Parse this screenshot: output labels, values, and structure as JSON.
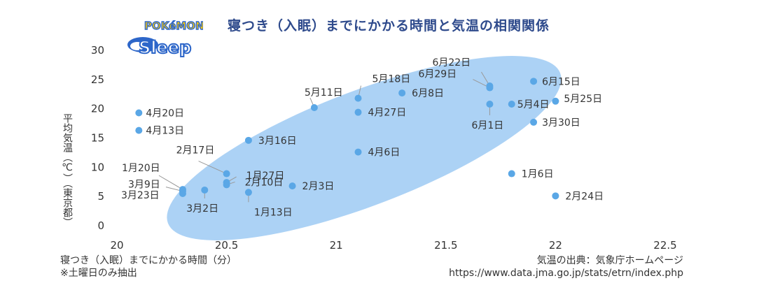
{
  "logo": {
    "line1": "POKéMON",
    "line2": "Sleep"
  },
  "title": "寝つき（入眠）までにかかる時間と気温の相関関係",
  "footnotes": {
    "xlabel": "寝つき（入眠）までにかかる時間（分）",
    "note": "※土曜日のみ抽出",
    "source_label": "気温の出典：気象庁ホームページ",
    "source_url": "https://www.data.jma.go.jp/stats/etrn/index.php"
  },
  "colors": {
    "point": "#5aa7e6",
    "ellipse": "#9dcaf3",
    "title": "#2e4a8c"
  },
  "chart_data": {
    "type": "scatter",
    "title": "寝つき（入眠）までにかかる時間と気温の相関関係",
    "xlabel": "寝つき（入眠）までにかかる時間（分）",
    "ylabel": "平均気温（℃）（東京都）",
    "xlim": [
      20,
      22.5
    ],
    "ylim": [
      0,
      30
    ],
    "xticks": [
      "20",
      "20.5",
      "21",
      "21.5",
      "22",
      "22.5"
    ],
    "yticks": [
      "0",
      "5",
      "10",
      "15",
      "20",
      "25",
      "30"
    ],
    "grid": false,
    "points": [
      {
        "label": "4月20日",
        "x": 20.1,
        "y": 19.3
      },
      {
        "label": "4月13日",
        "x": 20.1,
        "y": 16.3
      },
      {
        "label": "1月20日",
        "x": 20.3,
        "y": 6.2
      },
      {
        "label": "3月9日",
        "x": 20.3,
        "y": 5.9
      },
      {
        "label": "3月23日",
        "x": 20.3,
        "y": 5.5
      },
      {
        "label": "3月2日",
        "x": 20.4,
        "y": 6.1
      },
      {
        "label": "2月17日",
        "x": 20.5,
        "y": 8.9
      },
      {
        "label": "1月27日",
        "x": 20.5,
        "y": 7.4
      },
      {
        "label": "2月10日",
        "x": 20.5,
        "y": 7.0
      },
      {
        "label": "3月16日",
        "x": 20.6,
        "y": 14.6
      },
      {
        "label": "1月13日",
        "x": 20.6,
        "y": 5.7
      },
      {
        "label": "2月3日",
        "x": 20.8,
        "y": 6.8
      },
      {
        "label": "5月11日",
        "x": 20.9,
        "y": 20.2
      },
      {
        "label": "5月18日",
        "x": 21.1,
        "y": 21.8
      },
      {
        "label": "4月27日",
        "x": 21.1,
        "y": 19.4
      },
      {
        "label": "4月6日",
        "x": 21.1,
        "y": 12.6
      },
      {
        "label": "6月8日",
        "x": 21.3,
        "y": 22.7
      },
      {
        "label": "6月29日",
        "x": 21.7,
        "y": 23.6
      },
      {
        "label": "6月22日",
        "x": 21.7,
        "y": 23.9
      },
      {
        "label": "6月1日",
        "x": 21.7,
        "y": 20.8
      },
      {
        "label": "5月4日",
        "x": 21.8,
        "y": 20.8
      },
      {
        "label": "1月6日",
        "x": 21.8,
        "y": 8.9
      },
      {
        "label": "6月15日",
        "x": 21.9,
        "y": 24.7
      },
      {
        "label": "3月30日",
        "x": 21.9,
        "y": 17.7
      },
      {
        "label": "5月25日",
        "x": 22.0,
        "y": 21.3
      },
      {
        "label": "2月24日",
        "x": 22.0,
        "y": 5.1
      }
    ]
  }
}
